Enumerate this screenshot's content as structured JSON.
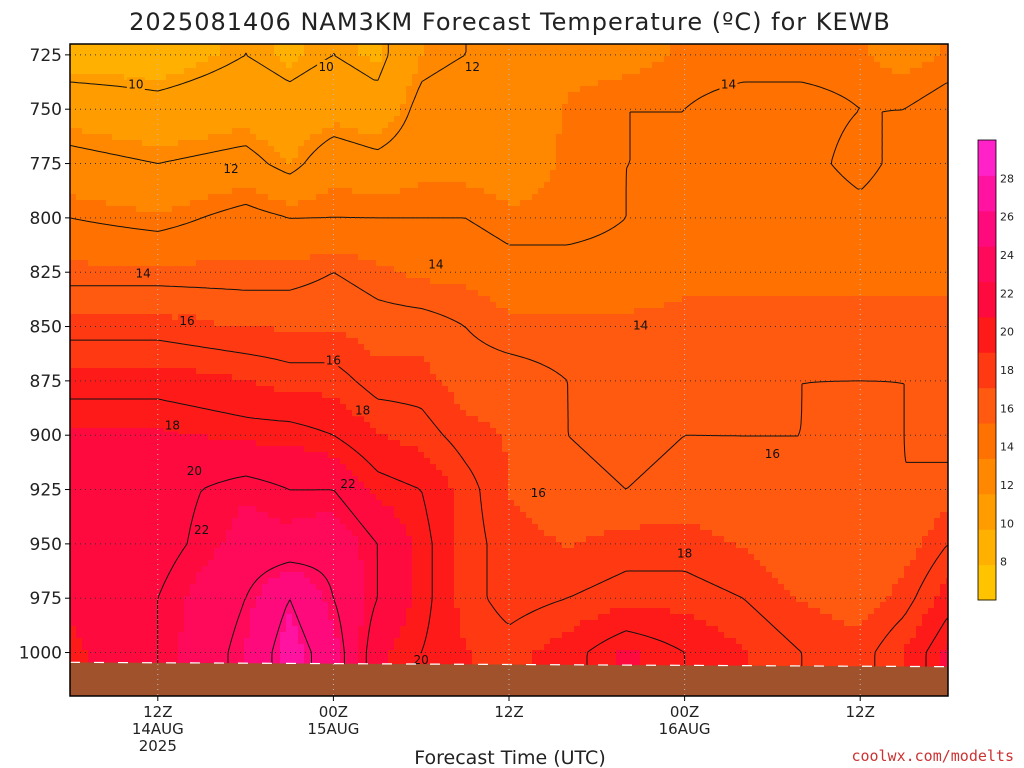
{
  "chart_data": {
    "type": "heatmap",
    "title": "2025081406 NAM3KM Forecast Temperature (ºC) for KEWB",
    "xlabel": "Forecast Time (UTC)",
    "ylabel": "",
    "y_axis": {
      "ticks": [
        725,
        750,
        775,
        800,
        825,
        850,
        875,
        900,
        925,
        950,
        975,
        1000
      ],
      "reversed": true,
      "range_hpa": [
        720,
        1020
      ]
    },
    "x_axis": {
      "range_hours": [
        6,
        66
      ],
      "ticks": [
        {
          "hour": 12,
          "lines": [
            "12Z",
            "14AUG",
            "2025"
          ]
        },
        {
          "hour": 24,
          "lines": [
            "00Z",
            "15AUG"
          ]
        },
        {
          "hour": 36,
          "lines": [
            "12Z"
          ]
        },
        {
          "hour": 48,
          "lines": [
            "00Z",
            "16AUG"
          ]
        },
        {
          "hour": 60,
          "lines": [
            "12Z"
          ]
        }
      ]
    },
    "grid": true,
    "colorbar": {
      "position": "right",
      "bounds": [
        6,
        30
      ],
      "labels": [
        8,
        10,
        12,
        14,
        16,
        18,
        20,
        22,
        24,
        26,
        28
      ],
      "colors": [
        "#ffc300",
        "#ffb000",
        "#ff9c00",
        "#ff8800",
        "#ff7100",
        "#ff5a0f",
        "#ff3a12",
        "#ff1a1a",
        "#ff0a3e",
        "#ff0a5a",
        "#ff0a7c",
        "#ff13a0",
        "#ff22c8"
      ]
    },
    "contour_labels": [
      "10",
      "10",
      "12",
      "12",
      "14",
      "14",
      "14",
      "14",
      "16",
      "16",
      "16",
      "16",
      "18",
      "18",
      "18",
      "20",
      "20",
      "22",
      "22"
    ],
    "surface_pressure_hpa": {
      "hours": [
        6,
        66
      ],
      "values": [
        1004.5,
        1006.5
      ]
    },
    "temperature_profile_c": [
      {
        "hour": 6,
        "temps": [
          9,
          11,
          12.5,
          14,
          15.5,
          17.5,
          19.5,
          21,
          21,
          21,
          21,
          20.5
        ]
      },
      {
        "hour": 12,
        "temps": [
          9,
          10.5,
          12,
          13.5,
          15.5,
          17.5,
          19.5,
          21,
          21.5,
          21.5,
          22,
          22
        ]
      },
      {
        "hour": 18,
        "temps": [
          10,
          11,
          12.5,
          14.5,
          15.5,
          17,
          19,
          20.5,
          22.5,
          23,
          24,
          24.5
        ]
      },
      {
        "hour": 21,
        "temps": [
          9.5,
          10.5,
          11.5,
          14,
          15.5,
          17,
          18.5,
          20.5,
          22,
          23,
          26,
          27
        ]
      },
      {
        "hour": 24,
        "temps": [
          10,
          11,
          13,
          14,
          16,
          17,
          18.5,
          20,
          22,
          23.5,
          24,
          25
        ]
      },
      {
        "hour": 27,
        "temps": [
          9.5,
          10.5,
          12.5,
          14,
          15.5,
          16.5,
          17.5,
          19,
          20.5,
          22,
          22,
          21
        ]
      },
      {
        "hour": 30,
        "temps": [
          11.5,
          12.5,
          13,
          14,
          15,
          16.5,
          17.5,
          18.5,
          20,
          20.5,
          20.5,
          20
        ]
      },
      {
        "hour": 33,
        "temps": [
          12,
          13,
          13,
          14,
          15,
          16,
          16.5,
          17.5,
          18.5,
          18.5,
          18.5,
          19
        ]
      },
      {
        "hour": 36,
        "temps": [
          12,
          12.5,
          13,
          13.5,
          14.5,
          15.5,
          16.5,
          17,
          17,
          17.5,
          17.5,
          18.5
        ]
      },
      {
        "hour": 40,
        "temps": [
          13,
          13.5,
          13.5,
          13.5,
          14.5,
          15.5,
          16,
          16,
          16.5,
          17,
          18,
          19.5
        ]
      },
      {
        "hour": 44,
        "temps": [
          13,
          14,
          14,
          14,
          14.5,
          15.5,
          15.5,
          15.5,
          16,
          17.5,
          18.5,
          21
        ]
      },
      {
        "hour": 48,
        "temps": [
          13.5,
          14,
          14,
          14.5,
          15,
          15.5,
          15.5,
          16,
          16.5,
          17.5,
          18.5,
          20
        ]
      },
      {
        "hour": 52,
        "temps": [
          13.5,
          14.5,
          14,
          14.5,
          15,
          15.5,
          15.5,
          16,
          16,
          17,
          18,
          19
        ]
      },
      {
        "hour": 56,
        "temps": [
          13.5,
          14.5,
          14.5,
          15,
          15,
          15.5,
          16,
          16,
          16,
          16,
          17,
          18
        ]
      },
      {
        "hour": 60,
        "temps": [
          13.5,
          14,
          13.5,
          14.5,
          15,
          15.5,
          16,
          16.5,
          16,
          16,
          16.5,
          17.5
        ]
      },
      {
        "hour": 63,
        "temps": [
          13,
          14,
          14.5,
          15,
          15,
          15.5,
          16,
          16,
          16,
          16.5,
          17.5,
          19
        ]
      },
      {
        "hour": 66,
        "temps": [
          13.5,
          14.5,
          14.5,
          15,
          15,
          15.5,
          16,
          15.5,
          16.5,
          18,
          19.5,
          21
        ]
      }
    ]
  },
  "credit": "coolwx.com/modelts"
}
